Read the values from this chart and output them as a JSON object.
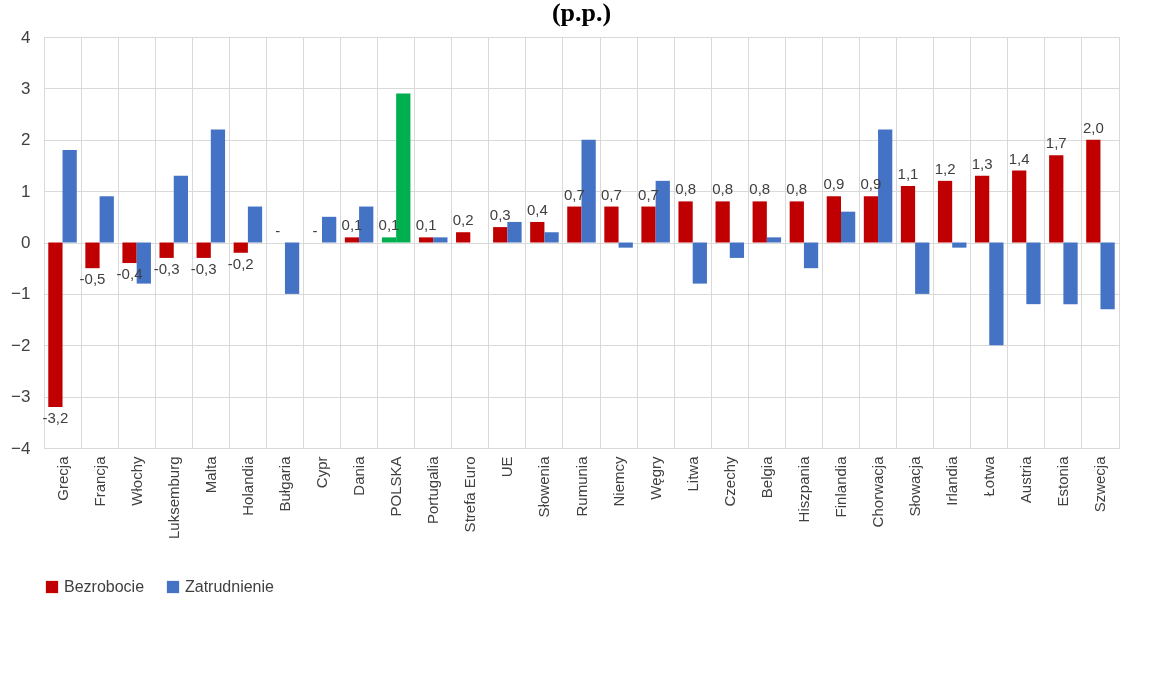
{
  "chart_data": {
    "type": "bar",
    "title": "(p.p.)",
    "categories": [
      "Grecja",
      "Francja",
      "Włochy",
      "Luksemburg",
      "Malta",
      "Holandia",
      "Bułgaria",
      "Cypr",
      "Dania",
      "POLSKA",
      "Portugalia",
      "Strefa Euro",
      "UE",
      "Słowenia",
      "Rumunia",
      "Niemcy",
      "Węgry",
      "Litwa",
      "Czechy",
      "Belgia",
      "Hiszpania",
      "Finlandia",
      "Chorwacja",
      "Słowacja",
      "Irlandia",
      "Łotwa",
      "Austria",
      "Estonia",
      "Szwecja"
    ],
    "series": [
      {
        "name": "Bezrobocie",
        "color": "#c00000",
        "colors": [
          "#c00000",
          "#c00000",
          "#c00000",
          "#c00000",
          "#c00000",
          "#c00000",
          "#c00000",
          "#c00000",
          "#c00000",
          "#00b050",
          "#c00000",
          "#c00000",
          "#c00000",
          "#c00000",
          "#c00000",
          "#c00000",
          "#c00000",
          "#c00000",
          "#c00000",
          "#c00000",
          "#c00000",
          "#c00000",
          "#c00000",
          "#c00000",
          "#c00000",
          "#c00000",
          "#c00000",
          "#c00000",
          "#c00000"
        ],
        "values": [
          -3.2,
          -0.5,
          -0.4,
          -0.3,
          -0.3,
          -0.2,
          null,
          null,
          0.1,
          0.1,
          0.1,
          0.2,
          0.3,
          0.4,
          0.7,
          0.7,
          0.7,
          0.8,
          0.8,
          0.8,
          0.8,
          0.9,
          0.9,
          1.1,
          1.2,
          1.3,
          1.4,
          1.7,
          2.0
        ],
        "value_labels": [
          "-3,2",
          "-0,5",
          "-0,4",
          "-0,3",
          "-0,3",
          "-0,2",
          "-",
          "-",
          "0,1",
          "0,1",
          "0,1",
          "0,2",
          "0,3",
          "0,4",
          "0,7",
          "0,7",
          "0,7",
          "0,8",
          "0,8",
          "0,8",
          "0,8",
          "0,9",
          "0,9",
          "1,1",
          "1,2",
          "1,3",
          "1,4",
          "1,7",
          "2,0"
        ]
      },
      {
        "name": "Zatrudnienie",
        "color": "#4472c4",
        "colors": [
          "#4472c4",
          "#4472c4",
          "#4472c4",
          "#4472c4",
          "#4472c4",
          "#4472c4",
          "#4472c4",
          "#4472c4",
          "#4472c4",
          "#00b050",
          "#4472c4",
          "#4472c4",
          "#4472c4",
          "#4472c4",
          "#4472c4",
          "#4472c4",
          "#4472c4",
          "#4472c4",
          "#4472c4",
          "#4472c4",
          "#4472c4",
          "#4472c4",
          "#4472c4",
          "#4472c4",
          "#4472c4",
          "#4472c4",
          "#4472c4",
          "#4472c4",
          "#4472c4"
        ],
        "values": [
          1.8,
          0.9,
          -0.8,
          1.3,
          2.2,
          0.7,
          -1.0,
          0.5,
          0.7,
          2.9,
          0.1,
          null,
          0.4,
          0.2,
          2.0,
          -0.1,
          1.2,
          -0.8,
          -0.3,
          0.1,
          -0.5,
          0.6,
          2.2,
          -1.0,
          -0.1,
          -2.0,
          -1.2,
          -1.2,
          -1.3
        ]
      }
    ],
    "ylim": [
      -4,
      4
    ],
    "yticks": [
      -4,
      -3,
      -2,
      -1,
      0,
      1,
      2,
      3,
      4
    ],
    "grid": true,
    "legend": "bottom"
  }
}
